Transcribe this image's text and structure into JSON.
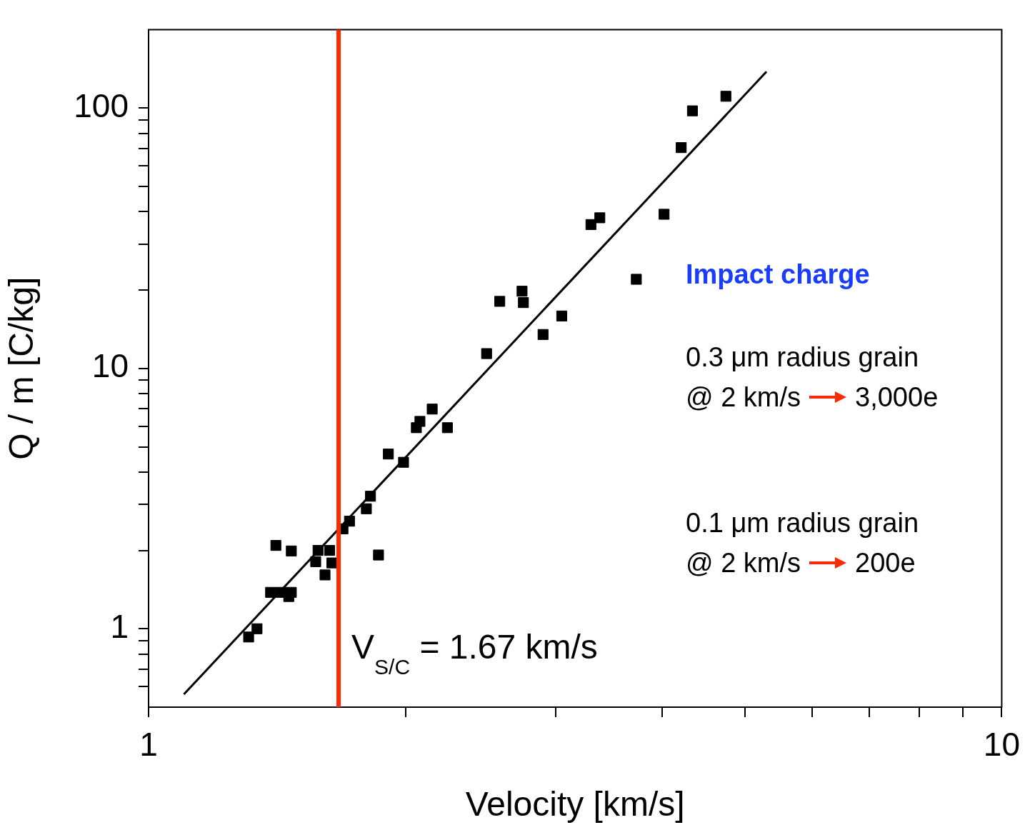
{
  "chart_data": {
    "type": "scatter",
    "xlabel": "Velocity [km/s]",
    "ylabel": "Q / m [C/kg]",
    "log": "xy",
    "grid": false,
    "xlim": [
      1,
      10
    ],
    "xticks": [
      1,
      {
        "value": 2,
        "label": null
      },
      {
        "value": 3,
        "label": null
      },
      {
        "value": 4,
        "label": null
      },
      {
        "value": 5,
        "label": null
      },
      {
        "value": 6,
        "label": null
      },
      {
        "value": 7,
        "label": null
      },
      {
        "value": 8,
        "label": null
      },
      {
        "value": 9,
        "label": null
      },
      10
    ],
    "ylim": [
      0.5,
      200
    ],
    "yticks": [
      {
        "value": 0.6,
        "label": null
      },
      {
        "value": 0.7,
        "label": null
      },
      {
        "value": 0.8,
        "label": null
      },
      {
        "value": 0.9,
        "label": null
      },
      1,
      {
        "value": 2,
        "label": null
      },
      {
        "value": 3,
        "label": null
      },
      {
        "value": 4,
        "label": null
      },
      {
        "value": 5,
        "label": null
      },
      {
        "value": 6,
        "label": null
      },
      {
        "value": 7,
        "label": null
      },
      {
        "value": 8,
        "label": null
      },
      {
        "value": 9,
        "label": null
      },
      10,
      {
        "value": 20,
        "label": null
      },
      {
        "value": 30,
        "label": null
      },
      {
        "value": 40,
        "label": null
      },
      {
        "value": 50,
        "label": null
      },
      {
        "value": 60,
        "label": null
      },
      {
        "value": 70,
        "label": null
      },
      {
        "value": 80,
        "label": null
      },
      {
        "value": 90,
        "label": null
      },
      100
    ],
    "series": [
      {
        "type": "line",
        "marker": "none",
        "color": "#000000",
        "x": [
          1.1,
          5.3
        ],
        "values": [
          0.56,
          138
        ]
      },
      {
        "marker": "square",
        "color": "#000000",
        "x": [
          1.31,
          1.34,
          1.39,
          1.43,
          1.46,
          1.47,
          1.41,
          1.47,
          1.57,
          1.58,
          1.61,
          1.63,
          1.64,
          1.69,
          1.72,
          1.8,
          1.82,
          1.86,
          1.91,
          1.99,
          2.06,
          2.08,
          2.15,
          2.24,
          2.49,
          2.58,
          2.74,
          2.75,
          2.9,
          3.05,
          3.3,
          3.38,
          3.73,
          4.02,
          4.21,
          4.34,
          4.75
        ],
        "values": [
          0.93,
          1.0,
          1.38,
          1.38,
          1.33,
          1.38,
          2.09,
          1.99,
          1.81,
          2.0,
          1.61,
          2.0,
          1.79,
          2.42,
          2.59,
          2.89,
          3.23,
          1.92,
          4.69,
          4.36,
          5.92,
          6.26,
          6.98,
          5.92,
          11.4,
          18.1,
          19.8,
          17.9,
          13.5,
          15.9,
          35.7,
          37.9,
          22.0,
          39.1,
          70.5,
          97.6,
          111
        ]
      }
    ],
    "ref_lines": [
      {
        "axis": "x",
        "value": 1.67,
        "label": "V$_{S/C}$ = 1.67 km/s",
        "color": "#ff2a00"
      }
    ],
    "annotations": [
      "Impact charge",
      "0.3 μm radius grain",
      "@ 2 km/s",
      "3,000e",
      "0.1 μm radius grain",
      "@ 2 km/s",
      "200e"
    ]
  }
}
